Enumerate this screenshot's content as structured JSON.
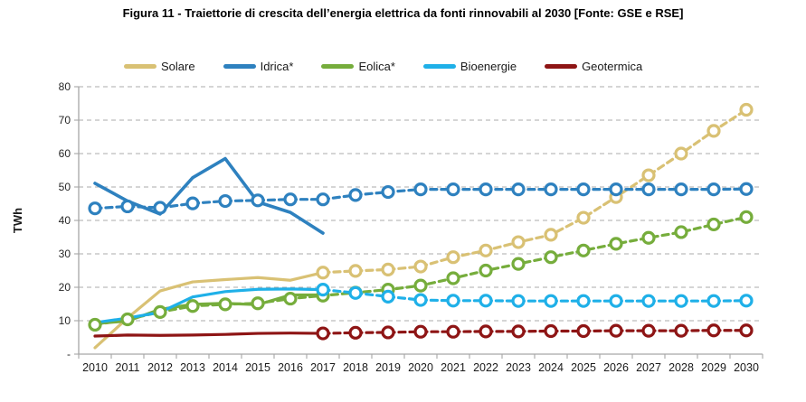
{
  "title": "Figura 11 - Traiettorie di crescita dell’energia elettrica da fonti rinnovabili al 2030 [Fonte: GSE e RSE]",
  "chart_data": {
    "type": "line",
    "title": "Figura 11 - Traiettorie di crescita dell’energia elettrica da fonti rinnovabili al 2030 [Fonte: GSE e RSE]",
    "ylabel": "TWh",
    "ylim": [
      0,
      80
    ],
    "ytick_step": 10,
    "zero_tick_label": "-",
    "grid": true,
    "legend_position": "top",
    "x": [
      2010,
      2011,
      2012,
      2013,
      2014,
      2015,
      2016,
      2017,
      2018,
      2019,
      2020,
      2021,
      2022,
      2023,
      2024,
      2025,
      2026,
      2027,
      2028,
      2029,
      2030
    ],
    "legend": [
      {
        "label": "Solare",
        "color": "#D9C174"
      },
      {
        "label": "Idrica*",
        "color": "#2E81BF"
      },
      {
        "label": "Eolica*",
        "color": "#76AD3C"
      },
      {
        "label": "Bioenergie",
        "color": "#1FB0E8"
      },
      {
        "label": "Geotermica",
        "color": "#8E1515"
      }
    ],
    "series": [
      {
        "name": "Solare (storico)",
        "color": "#D9C174",
        "dashed": false,
        "markers": false,
        "width": 3.2,
        "values": [
          1.9,
          10.8,
          18.9,
          21.6,
          22.3,
          22.9,
          22.1,
          24.4,
          null,
          null,
          null,
          null,
          null,
          null,
          null,
          null,
          null,
          null,
          null,
          null,
          null
        ]
      },
      {
        "name": "Solare (traiettoria)",
        "color": "#D9C174",
        "dashed": true,
        "markers": true,
        "width": 3.2,
        "values": [
          null,
          null,
          null,
          null,
          null,
          null,
          null,
          24.4,
          24.9,
          25.3,
          26.2,
          29,
          31,
          33.5,
          35.7,
          40.8,
          47,
          53.5,
          60,
          66.8,
          73.1
        ]
      },
      {
        "name": "Idrica* (storico)",
        "color": "#2E81BF",
        "dashed": false,
        "markers": false,
        "width": 3.6,
        "values": [
          51.1,
          45.8,
          41.9,
          52.8,
          58.5,
          45.5,
          42.4,
          36.2,
          null,
          null,
          null,
          null,
          null,
          null,
          null,
          null,
          null,
          null,
          null,
          null,
          null
        ]
      },
      {
        "name": "Idrica* (traiettoria normalizzata)",
        "color": "#2E81BF",
        "dashed": true,
        "markers": true,
        "width": 3.2,
        "values": [
          43.6,
          44.2,
          43.8,
          45.1,
          45.8,
          46,
          46.3,
          46.3,
          47.6,
          48.5,
          49.3,
          49.3,
          49.3,
          49.3,
          49.3,
          49.3,
          49.3,
          49.3,
          49.3,
          49.3,
          49.4
        ]
      },
      {
        "name": "Eolica* (storico)",
        "color": "#76AD3C",
        "dashed": false,
        "markers": false,
        "width": 3.2,
        "values": [
          9.1,
          9.9,
          13.4,
          14.9,
          15.2,
          14.8,
          17.7,
          17.7,
          null,
          null,
          null,
          null,
          null,
          null,
          null,
          null,
          null,
          null,
          null,
          null,
          null
        ]
      },
      {
        "name": "Eolica* (traiettoria normalizzata)",
        "color": "#76AD3C",
        "dashed": true,
        "markers": true,
        "width": 3.2,
        "values": [
          8.8,
          10.4,
          12.6,
          14.4,
          14.9,
          15.2,
          16.6,
          17.5,
          18.4,
          19.3,
          20.5,
          22.7,
          25,
          27,
          29,
          31,
          33,
          34.8,
          36.5,
          38.8,
          41
        ]
      },
      {
        "name": "Bioenergie (storico)",
        "color": "#1FB0E8",
        "dashed": false,
        "markers": false,
        "width": 3.2,
        "values": [
          9.4,
          10.8,
          12.5,
          17.1,
          18.7,
          19.4,
          19.5,
          19.3,
          null,
          null,
          null,
          null,
          null,
          null,
          null,
          null,
          null,
          null,
          null,
          null,
          null
        ]
      },
      {
        "name": "Bioenergie (traiettoria)",
        "color": "#1FB0E8",
        "dashed": true,
        "markers": true,
        "width": 3.2,
        "values": [
          null,
          null,
          null,
          null,
          null,
          null,
          null,
          19.3,
          18.3,
          17.2,
          16.2,
          16,
          16,
          15.9,
          15.9,
          15.9,
          15.9,
          15.9,
          15.9,
          15.9,
          16
        ]
      },
      {
        "name": "Geotermica (storico)",
        "color": "#8E1515",
        "dashed": false,
        "markers": false,
        "width": 3.2,
        "values": [
          5.4,
          5.7,
          5.6,
          5.7,
          5.9,
          6.2,
          6.3,
          6.2,
          null,
          null,
          null,
          null,
          null,
          null,
          null,
          null,
          null,
          null,
          null,
          null,
          null
        ]
      },
      {
        "name": "Geotermica (traiettoria)",
        "color": "#8E1515",
        "dashed": true,
        "markers": true,
        "width": 3.2,
        "values": [
          null,
          null,
          null,
          null,
          null,
          null,
          null,
          6.2,
          6.4,
          6.5,
          6.7,
          6.7,
          6.8,
          6.8,
          6.9,
          6.9,
          7,
          7,
          7,
          7.1,
          7.1
        ]
      }
    ]
  }
}
